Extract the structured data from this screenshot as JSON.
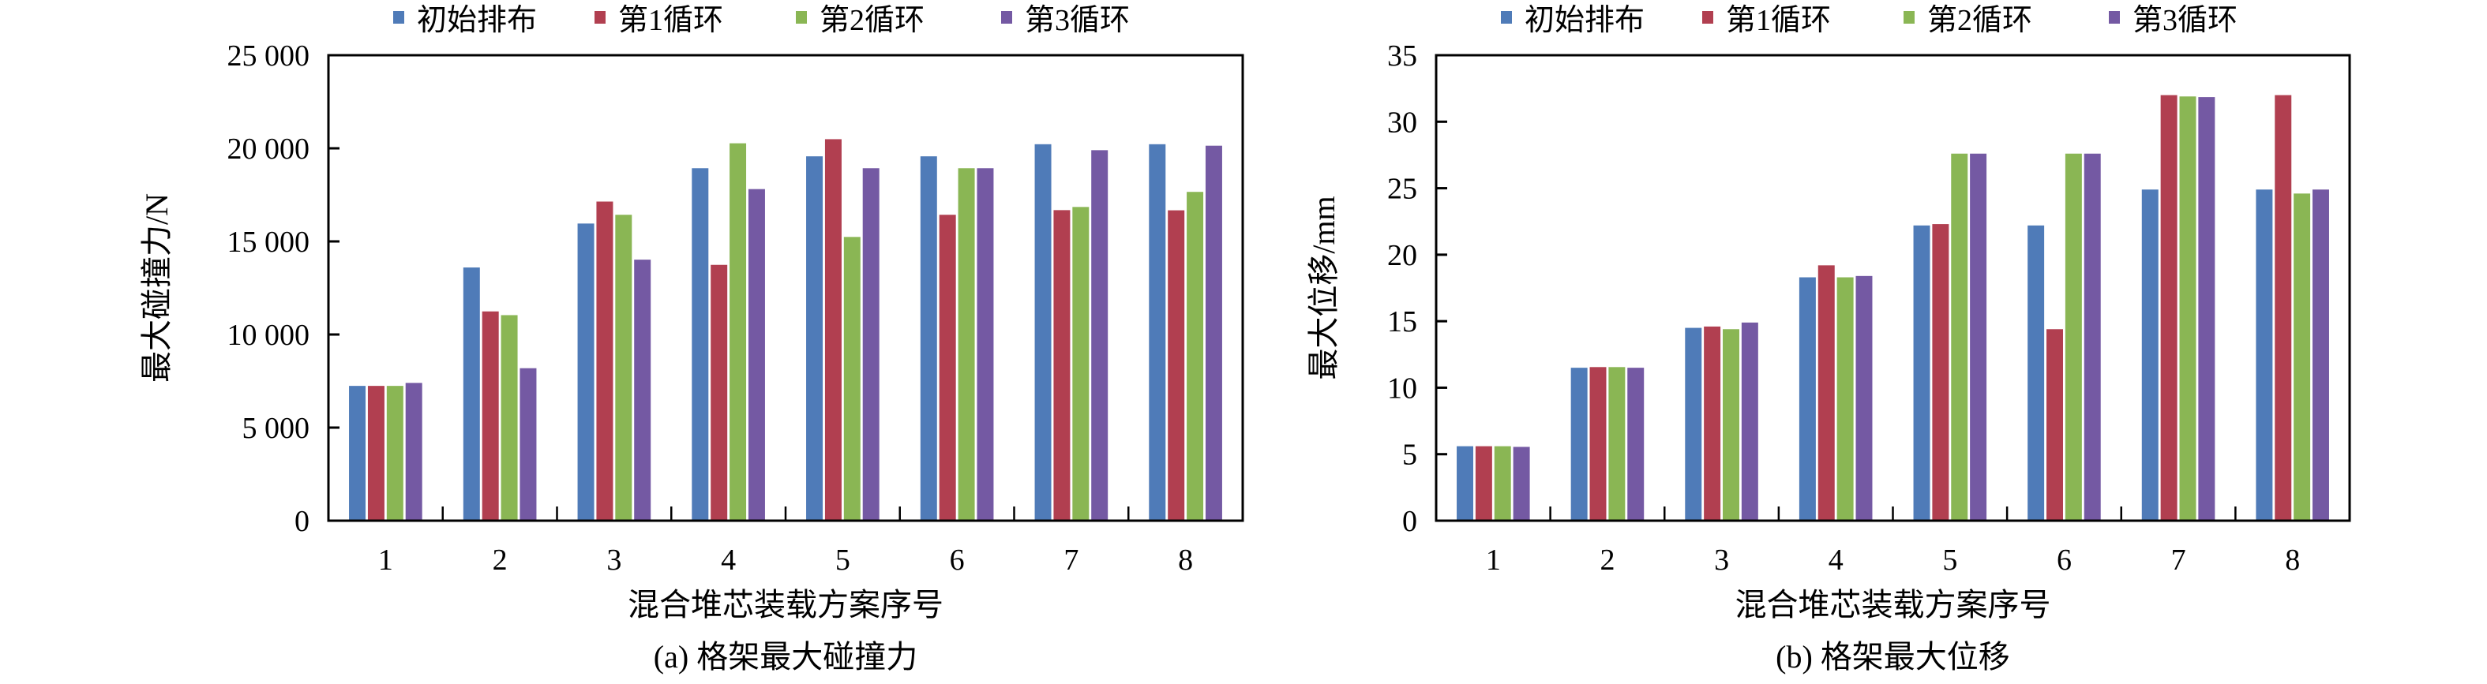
{
  "colors": [
    "#4f7bb8",
    "#b13f50",
    "#8ab654",
    "#7459a3"
  ],
  "chart_data": [
    {
      "type": "bar",
      "title": "(a) 格架最大碰撞力",
      "xlabel": "混合堆芯装载方案序号",
      "ylabel": "最大碰撞力/N",
      "categories": [
        "1",
        "2",
        "3",
        "4",
        "5",
        "6",
        "7",
        "8"
      ],
      "ylim": [
        0,
        25000
      ],
      "yticks": [
        0,
        5000,
        10000,
        15000,
        20000,
        25000
      ],
      "ytick_labels": [
        "0",
        "5 000",
        "10 000",
        "15 000",
        "20 000",
        "25 000"
      ],
      "legend_position": "top-center",
      "series": [
        {
          "name": "初始排布",
          "values": [
            7240,
            13600,
            15960,
            18930,
            19570,
            19570,
            20220,
            20220
          ]
        },
        {
          "name": "第1循环",
          "values": [
            7240,
            11240,
            17140,
            13740,
            20490,
            16430,
            16680,
            16670
          ]
        },
        {
          "name": "第2循环",
          "values": [
            7240,
            11040,
            16430,
            20270,
            15240,
            18930,
            16850,
            17660
          ]
        },
        {
          "name": "第3循环",
          "values": [
            7400,
            8190,
            14020,
            17810,
            18930,
            18930,
            19900,
            20140
          ]
        }
      ]
    },
    {
      "type": "bar",
      "title": "(b) 格架最大位移",
      "xlabel": "混合堆芯装载方案序号",
      "ylabel": "最大位移/mm",
      "categories": [
        "1",
        "2",
        "3",
        "4",
        "5",
        "6",
        "7",
        "8"
      ],
      "ylim": [
        0,
        35
      ],
      "yticks": [
        0,
        5,
        10,
        15,
        20,
        25,
        30,
        35
      ],
      "ytick_labels": [
        "0",
        "5",
        "10",
        "15",
        "20",
        "25",
        "30",
        "35"
      ],
      "legend_position": "top-center",
      "series": [
        {
          "name": "初始排布",
          "values": [
            5.6,
            11.5,
            14.5,
            18.3,
            22.2,
            22.2,
            24.9,
            24.9
          ]
        },
        {
          "name": "第1循环",
          "values": [
            5.6,
            11.55,
            14.6,
            19.2,
            22.3,
            14.4,
            32.0,
            32.0
          ]
        },
        {
          "name": "第2循环",
          "values": [
            5.6,
            11.55,
            14.4,
            18.3,
            27.6,
            27.6,
            31.9,
            24.6
          ]
        },
        {
          "name": "第3循环",
          "values": [
            5.55,
            11.5,
            14.9,
            18.4,
            27.6,
            27.6,
            31.85,
            24.9
          ]
        }
      ]
    }
  ]
}
